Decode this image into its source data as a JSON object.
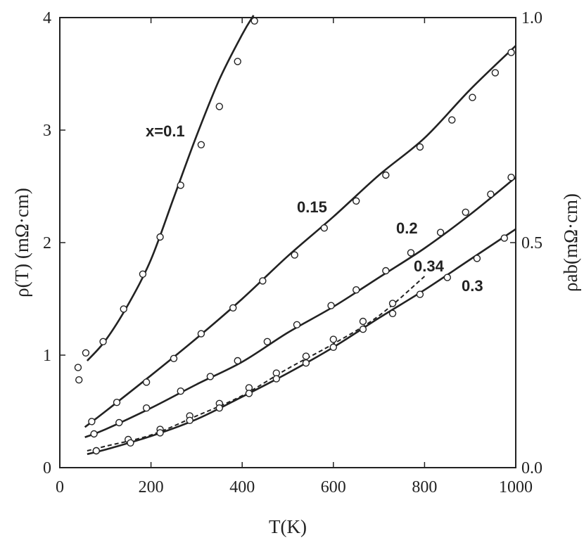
{
  "chart_data": {
    "type": "line",
    "title": "",
    "xlabel": "T(K)",
    "ylabel": "ρ(T) (mΩ·cm)",
    "y2label": "ρab(mΩ·cm)",
    "xlim": [
      0,
      1000
    ],
    "ylim": [
      0,
      4
    ],
    "y2lim": [
      0.0,
      1.0
    ],
    "x_ticks": [
      0,
      200,
      400,
      600,
      800,
      1000
    ],
    "x_tick_labels": [
      "0",
      "200",
      "400",
      "600",
      "800",
      "1000"
    ],
    "y_ticks": [
      0,
      1,
      2,
      3,
      4
    ],
    "y_tick_labels": [
      "0",
      "1",
      "2",
      "3",
      "4"
    ],
    "y2_ticks": [
      0.0,
      0.5,
      1.0
    ],
    "y2_tick_labels": [
      "0.0",
      "0.5",
      "1.0"
    ],
    "grid": false,
    "series": [
      {
        "name": "x=0.1",
        "label": "x=0.1",
        "line_style": "solid",
        "curve_x": [
          60,
          100,
          150,
          200,
          250,
          300,
          350,
          400,
          425
        ],
        "curve_y": [
          0.95,
          1.13,
          1.45,
          1.85,
          2.4,
          2.95,
          3.45,
          3.85,
          4.02
        ],
        "points_x": [
          57,
          95,
          140,
          182,
          220,
          265,
          310,
          350,
          390,
          427
        ],
        "points_y": [
          1.02,
          1.12,
          1.41,
          1.72,
          2.05,
          2.51,
          2.87,
          3.21,
          3.61,
          3.97
        ]
      },
      {
        "name": "0.15",
        "label": "0.15",
        "line_style": "solid",
        "curve_x": [
          55,
          100,
          200,
          300,
          400,
          500,
          600,
          700,
          800,
          900,
          1000
        ],
        "curve_y": [
          0.36,
          0.5,
          0.82,
          1.15,
          1.5,
          1.88,
          2.23,
          2.6,
          2.93,
          3.36,
          3.75
        ],
        "points_x": [
          70,
          125,
          190,
          250,
          310,
          380,
          445,
          515,
          580,
          650,
          715,
          790,
          860,
          905,
          955,
          990
        ],
        "points_y": [
          0.41,
          0.58,
          0.76,
          0.97,
          1.19,
          1.42,
          1.66,
          1.89,
          2.13,
          2.37,
          2.6,
          2.85,
          3.09,
          3.29,
          3.51,
          3.69
        ]
      },
      {
        "name": "0.2",
        "label": "0.2",
        "line_style": "solid",
        "curve_x": [
          55,
          100,
          200,
          300,
          400,
          500,
          600,
          700,
          800,
          900,
          1000
        ],
        "curve_y": [
          0.27,
          0.34,
          0.53,
          0.74,
          0.94,
          1.2,
          1.43,
          1.69,
          1.95,
          2.25,
          2.58
        ],
        "points_x": [
          75,
          130,
          190,
          265,
          330,
          390,
          455,
          520,
          595,
          650,
          715,
          770,
          835,
          890,
          945,
          990
        ],
        "points_y": [
          0.3,
          0.4,
          0.53,
          0.68,
          0.81,
          0.95,
          1.12,
          1.27,
          1.44,
          1.58,
          1.75,
          1.91,
          2.09,
          2.27,
          2.43,
          2.58
        ]
      },
      {
        "name": "0.34",
        "label": "0.34",
        "line_style": "dashed",
        "curve_x": [
          60,
          100,
          200,
          300,
          400,
          500,
          600,
          700,
          800
        ],
        "curve_y": [
          0.15,
          0.19,
          0.29,
          0.46,
          0.64,
          0.88,
          1.1,
          1.35,
          1.7
        ],
        "points_x": [
          80,
          150,
          220,
          285,
          350,
          415,
          475,
          540,
          600,
          665,
          730
        ],
        "points_y": [
          0.15,
          0.25,
          0.34,
          0.46,
          0.57,
          0.71,
          0.84,
          0.99,
          1.14,
          1.3,
          1.46
        ]
      },
      {
        "name": "0.3",
        "label": "0.3",
        "line_style": "solid",
        "curve_x": [
          60,
          100,
          200,
          300,
          400,
          500,
          600,
          700,
          800,
          900,
          1000
        ],
        "curve_y": [
          0.12,
          0.16,
          0.28,
          0.43,
          0.63,
          0.84,
          1.07,
          1.33,
          1.58,
          1.85,
          2.12
        ],
        "points_x": [
          80,
          155,
          220,
          285,
          350,
          415,
          475,
          540,
          600,
          665,
          730,
          790,
          850,
          915,
          975
        ],
        "points_y": [
          0.15,
          0.22,
          0.31,
          0.42,
          0.53,
          0.66,
          0.79,
          0.93,
          1.07,
          1.23,
          1.37,
          1.54,
          1.69,
          1.86,
          2.04
        ]
      }
    ],
    "extra_points": {
      "points_x": [
        40,
        42
      ],
      "points_y": [
        0.89,
        0.78
      ]
    }
  }
}
